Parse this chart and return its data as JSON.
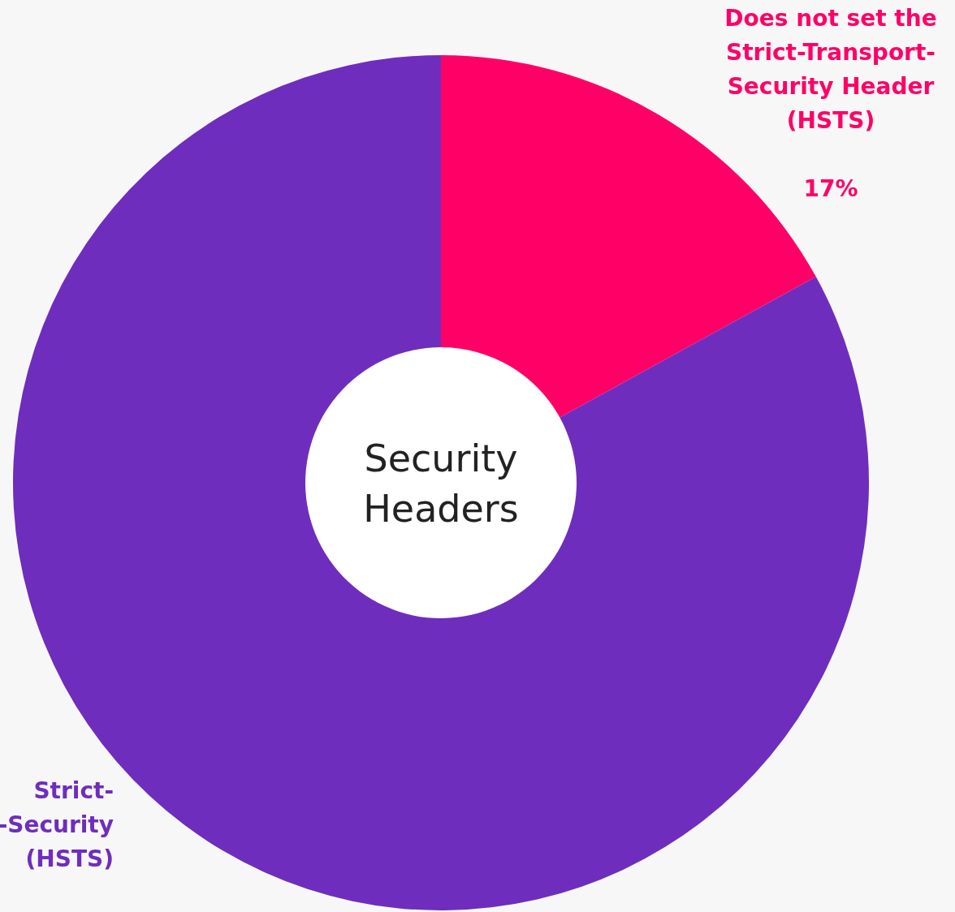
{
  "chart_data": {
    "type": "donut",
    "categories": [
      "Does not set the\nStrict-Transport-\nSecurity  Header\n(HSTS)",
      "Strict-\n-Security\n(HSTS)"
    ],
    "values": [
      17,
      83
    ],
    "colors": [
      "#ff0066",
      "#6f2dbd"
    ],
    "value_labels": [
      "17%",
      null
    ],
    "annotations": [
      "Security\nHeaders"
    ]
  }
}
